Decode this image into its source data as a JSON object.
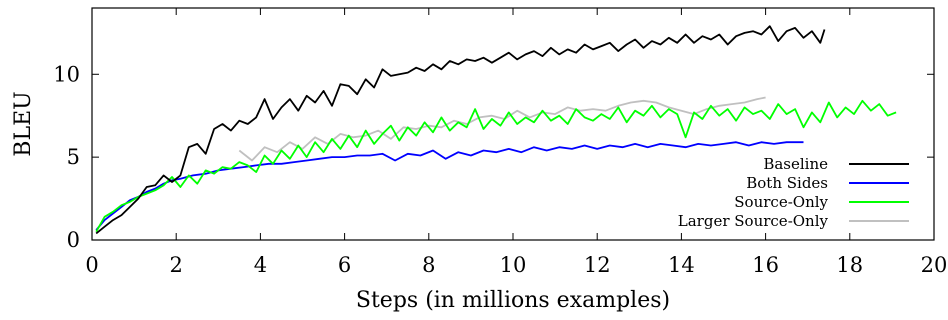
{
  "chart_data": {
    "type": "line",
    "title": "",
    "xlabel": "Steps (in millions examples)",
    "ylabel": "BLEU",
    "xlim": [
      0,
      20
    ],
    "ylim": [
      0,
      14
    ],
    "xticks": [
      0,
      2,
      4,
      6,
      8,
      10,
      12,
      14,
      16,
      18,
      20
    ],
    "yticks": [
      0,
      5,
      10
    ],
    "grid": false,
    "legend_position": "lower-right",
    "series": [
      {
        "name": "Baseline",
        "color": "#000000",
        "x": [
          0.1,
          0.3,
          0.5,
          0.7,
          0.9,
          1.1,
          1.3,
          1.5,
          1.7,
          1.9,
          2.1,
          2.3,
          2.5,
          2.7,
          2.9,
          3.1,
          3.3,
          3.5,
          3.7,
          3.9,
          4.1,
          4.3,
          4.5,
          4.7,
          4.9,
          5.1,
          5.3,
          5.5,
          5.7,
          5.9,
          6.1,
          6.3,
          6.5,
          6.7,
          6.9,
          7.1,
          7.3,
          7.5,
          7.7,
          7.9,
          8.1,
          8.3,
          8.5,
          8.7,
          8.9,
          9.1,
          9.3,
          9.5,
          9.7,
          9.9,
          10.1,
          10.3,
          10.5,
          10.7,
          10.9,
          11.1,
          11.3,
          11.5,
          11.7,
          11.9,
          12.1,
          12.3,
          12.5,
          12.7,
          12.9,
          13.1,
          13.3,
          13.5,
          13.7,
          13.9,
          14.1,
          14.3,
          14.5,
          14.7,
          14.9,
          15.1,
          15.3,
          15.5,
          15.7,
          15.9,
          16.1,
          16.3,
          16.5,
          16.7,
          16.9,
          17.1,
          17.3,
          17.4
        ],
        "y": [
          0.4,
          0.8,
          1.2,
          1.5,
          2.0,
          2.5,
          3.2,
          3.3,
          3.9,
          3.5,
          3.9,
          5.6,
          5.8,
          5.2,
          6.7,
          7.0,
          6.6,
          7.2,
          7.0,
          7.4,
          8.5,
          7.3,
          8.0,
          8.5,
          7.8,
          8.7,
          8.3,
          9.0,
          8.1,
          9.4,
          9.3,
          8.8,
          9.7,
          9.2,
          10.3,
          9.9,
          10.0,
          10.1,
          10.4,
          10.2,
          10.6,
          10.3,
          10.8,
          10.6,
          10.9,
          10.8,
          11.0,
          10.7,
          11.0,
          11.3,
          10.9,
          11.2,
          11.4,
          11.1,
          11.6,
          11.2,
          11.5,
          11.3,
          11.8,
          11.5,
          11.7,
          11.9,
          11.4,
          11.8,
          12.1,
          11.6,
          12.0,
          11.8,
          12.2,
          11.9,
          12.4,
          11.9,
          12.3,
          12.1,
          12.4,
          11.8,
          12.3,
          12.5,
          12.6,
          12.4,
          12.9,
          12.0,
          12.6,
          12.8,
          12.2,
          12.6,
          11.9,
          12.7
        ]
      },
      {
        "name": "Both Sides",
        "color": "#0000ff",
        "x": [
          0.1,
          0.3,
          0.5,
          0.7,
          0.9,
          1.1,
          1.3,
          1.5,
          1.7,
          1.9,
          2.1,
          2.4,
          2.7,
          3.0,
          3.3,
          3.6,
          3.9,
          4.2,
          4.5,
          4.8,
          5.1,
          5.4,
          5.7,
          6.0,
          6.3,
          6.6,
          6.9,
          7.2,
          7.5,
          7.8,
          8.1,
          8.4,
          8.7,
          9.0,
          9.3,
          9.6,
          9.9,
          10.2,
          10.5,
          10.8,
          11.1,
          11.4,
          11.7,
          12.0,
          12.3,
          12.6,
          12.9,
          13.2,
          13.5,
          13.8,
          14.1,
          14.4,
          14.7,
          15.0,
          15.3,
          15.6,
          15.9,
          16.2,
          16.5,
          16.9
        ],
        "y": [
          0.6,
          1.2,
          1.6,
          2.0,
          2.4,
          2.6,
          2.9,
          3.1,
          3.4,
          3.6,
          3.7,
          3.9,
          4.0,
          4.2,
          4.3,
          4.4,
          4.5,
          4.6,
          4.6,
          4.7,
          4.8,
          4.9,
          5.0,
          5.0,
          5.1,
          5.1,
          5.2,
          4.8,
          5.2,
          5.1,
          5.4,
          4.9,
          5.3,
          5.1,
          5.4,
          5.3,
          5.5,
          5.3,
          5.6,
          5.4,
          5.6,
          5.5,
          5.7,
          5.5,
          5.7,
          5.6,
          5.8,
          5.6,
          5.8,
          5.7,
          5.6,
          5.8,
          5.7,
          5.8,
          5.9,
          5.7,
          5.9,
          5.8,
          5.9,
          5.9
        ]
      },
      {
        "name": "Source-Only",
        "color": "#00ff00",
        "x": [
          0.1,
          0.3,
          0.5,
          0.7,
          0.9,
          1.1,
          1.3,
          1.5,
          1.7,
          1.9,
          2.1,
          2.3,
          2.5,
          2.7,
          2.9,
          3.1,
          3.3,
          3.5,
          3.7,
          3.9,
          4.1,
          4.3,
          4.5,
          4.7,
          4.9,
          5.1,
          5.3,
          5.5,
          5.7,
          5.9,
          6.1,
          6.3,
          6.5,
          6.7,
          6.9,
          7.1,
          7.3,
          7.5,
          7.7,
          7.9,
          8.1,
          8.3,
          8.5,
          8.7,
          8.9,
          9.1,
          9.3,
          9.5,
          9.7,
          9.9,
          10.1,
          10.3,
          10.5,
          10.7,
          10.9,
          11.1,
          11.3,
          11.5,
          11.7,
          11.9,
          12.1,
          12.3,
          12.5,
          12.7,
          12.9,
          13.1,
          13.3,
          13.5,
          13.7,
          13.9,
          14.1,
          14.3,
          14.5,
          14.7,
          14.9,
          15.1,
          15.3,
          15.5,
          15.7,
          15.9,
          16.1,
          16.3,
          16.5,
          16.7,
          16.9,
          17.1,
          17.3,
          17.5,
          17.7,
          17.9,
          18.1,
          18.3,
          18.5,
          18.7,
          18.9,
          19.1
        ],
        "y": [
          0.5,
          1.4,
          1.7,
          2.1,
          2.3,
          2.6,
          2.8,
          3.0,
          3.3,
          3.8,
          3.2,
          3.9,
          3.4,
          4.2,
          4.0,
          4.4,
          4.3,
          4.7,
          4.5,
          4.1,
          5.1,
          4.6,
          5.4,
          4.9,
          5.7,
          5.0,
          5.9,
          5.3,
          6.1,
          5.5,
          6.3,
          5.6,
          6.6,
          5.8,
          6.4,
          6.9,
          6.0,
          6.8,
          6.3,
          7.1,
          6.5,
          7.4,
          6.6,
          7.1,
          6.8,
          7.9,
          6.7,
          7.3,
          6.9,
          7.7,
          7.0,
          7.4,
          7.1,
          7.8,
          7.2,
          7.5,
          7.0,
          7.9,
          7.4,
          7.2,
          7.6,
          7.3,
          8.0,
          7.1,
          7.8,
          7.5,
          8.1,
          7.4,
          7.9,
          7.6,
          6.2,
          7.7,
          7.3,
          8.1,
          7.5,
          7.9,
          7.2,
          8.0,
          7.6,
          7.8,
          7.3,
          8.2,
          7.6,
          7.9,
          6.8,
          7.7,
          7.1,
          8.3,
          7.4,
          8.0,
          7.6,
          8.4,
          7.8,
          8.2,
          7.5,
          7.7
        ]
      },
      {
        "name": "Larger Source-Only",
        "color": "#c0c0c0",
        "x": [
          3.5,
          3.8,
          4.1,
          4.4,
          4.7,
          5.0,
          5.3,
          5.6,
          5.9,
          6.2,
          6.5,
          6.8,
          7.1,
          7.4,
          7.7,
          8.0,
          8.3,
          8.6,
          8.9,
          9.2,
          9.5,
          9.8,
          10.1,
          10.4,
          10.7,
          11.0,
          11.3,
          11.6,
          11.9,
          12.2,
          12.5,
          12.8,
          13.1,
          13.4,
          13.7,
          14.0,
          14.3,
          14.6,
          14.9,
          15.2,
          15.5,
          15.8,
          16.0
        ],
        "y": [
          5.4,
          4.8,
          5.6,
          5.3,
          5.9,
          5.5,
          6.2,
          5.8,
          6.4,
          6.2,
          6.3,
          6.6,
          6.1,
          6.8,
          6.7,
          6.9,
          6.8,
          7.2,
          7.0,
          7.4,
          7.5,
          7.3,
          7.8,
          7.4,
          7.7,
          7.6,
          8.0,
          7.8,
          7.9,
          7.8,
          8.1,
          8.3,
          8.4,
          8.3,
          8.0,
          7.8,
          7.6,
          7.9,
          8.1,
          8.2,
          8.3,
          8.5,
          8.6
        ]
      }
    ]
  }
}
